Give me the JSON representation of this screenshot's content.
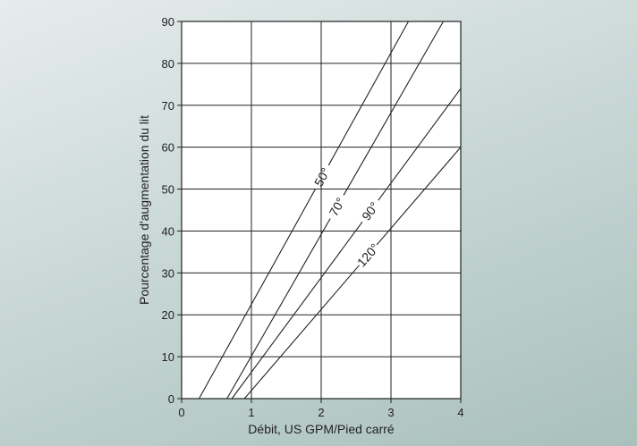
{
  "chart_data": {
    "type": "line",
    "title": "",
    "xlabel": "Débit, US GPM/Pied carré",
    "ylabel": "Pourcentage d'augmentation du lit",
    "xlim": [
      0,
      4
    ],
    "ylim": [
      0,
      90
    ],
    "x_ticks": [
      "0",
      "1",
      "2",
      "3",
      "4"
    ],
    "y_ticks": [
      "0",
      "10",
      "20",
      "30",
      "40",
      "50",
      "60",
      "70",
      "80",
      "90"
    ],
    "grid": true,
    "series": [
      {
        "name": "50°",
        "points": [
          [
            0.25,
            0
          ],
          [
            3.25,
            90
          ]
        ],
        "label_at": [
          2.0,
          53
        ]
      },
      {
        "name": "70°",
        "points": [
          [
            0.65,
            0
          ],
          [
            3.75,
            90
          ]
        ],
        "label_at": [
          2.2,
          46
        ]
      },
      {
        "name": "90°",
        "points": [
          [
            0.72,
            0
          ],
          [
            4.0,
            74
          ]
        ],
        "label_at": [
          2.6,
          46
        ]
      },
      {
        "name": "120°",
        "points": [
          [
            0.9,
            0
          ],
          [
            4.0,
            60
          ]
        ],
        "label_at": [
          2.55,
          36
        ]
      }
    ],
    "colors": {
      "line": "#222222",
      "plot_bg": "#ffffff",
      "grid": "#222222"
    }
  }
}
